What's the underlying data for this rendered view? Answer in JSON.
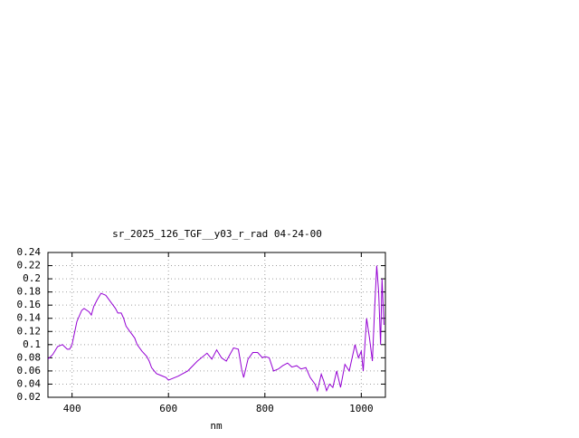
{
  "chart_data": {
    "type": "line",
    "title": "sr_2025_126_TGF__y03_r_rad 04-24-00",
    "x_label": "nm",
    "xlim": [
      350,
      1050
    ],
    "xticks": [
      400,
      600,
      800,
      1000
    ],
    "ylim": [
      0.02,
      0.24
    ],
    "yticks": [
      0.02,
      0.04,
      0.06,
      0.08,
      0.1,
      0.12,
      0.14,
      0.16,
      0.18,
      0.2,
      0.22,
      0.24
    ],
    "grid": true,
    "series": [
      {
        "color": "#9400d3",
        "x": [
          350,
          360,
          370,
          380,
          390,
          395,
          400,
          410,
          420,
          425,
          435,
          440,
          445,
          452,
          460,
          470,
          480,
          490,
          495,
          502,
          507,
          512,
          520,
          530,
          535,
          545,
          555,
          560,
          565,
          575,
          585,
          595,
          600,
          620,
          640,
          660,
          680,
          690,
          700,
          710,
          720,
          735,
          745,
          752,
          756,
          765,
          775,
          785,
          795,
          800,
          809,
          818,
          828,
          837,
          847,
          856,
          866,
          875,
          885,
          894,
          904,
          909,
          917,
          922,
          928,
          934,
          941,
          949,
          957,
          966,
          975,
          987,
          994,
          1000,
          1004,
          1011,
          1017,
          1023,
          1028,
          1032,
          1036,
          1040,
          1043,
          1047
        ],
        "values": [
          0.078,
          0.085,
          0.097,
          0.1,
          0.093,
          0.093,
          0.1,
          0.135,
          0.152,
          0.155,
          0.15,
          0.145,
          0.158,
          0.168,
          0.178,
          0.175,
          0.165,
          0.155,
          0.148,
          0.148,
          0.14,
          0.128,
          0.12,
          0.11,
          0.1,
          0.09,
          0.082,
          0.075,
          0.065,
          0.056,
          0.053,
          0.05,
          0.046,
          0.052,
          0.06,
          0.075,
          0.087,
          0.078,
          0.092,
          0.08,
          0.075,
          0.095,
          0.093,
          0.062,
          0.05,
          0.078,
          0.088,
          0.088,
          0.08,
          0.082,
          0.08,
          0.06,
          0.063,
          0.068,
          0.072,
          0.066,
          0.068,
          0.063,
          0.065,
          0.05,
          0.04,
          0.03,
          0.055,
          0.045,
          0.03,
          0.04,
          0.035,
          0.06,
          0.035,
          0.07,
          0.06,
          0.1,
          0.08,
          0.09,
          0.06,
          0.14,
          0.11,
          0.075,
          0.16,
          0.22,
          0.18,
          0.1,
          0.2,
          0.13
        ]
      }
    ]
  }
}
